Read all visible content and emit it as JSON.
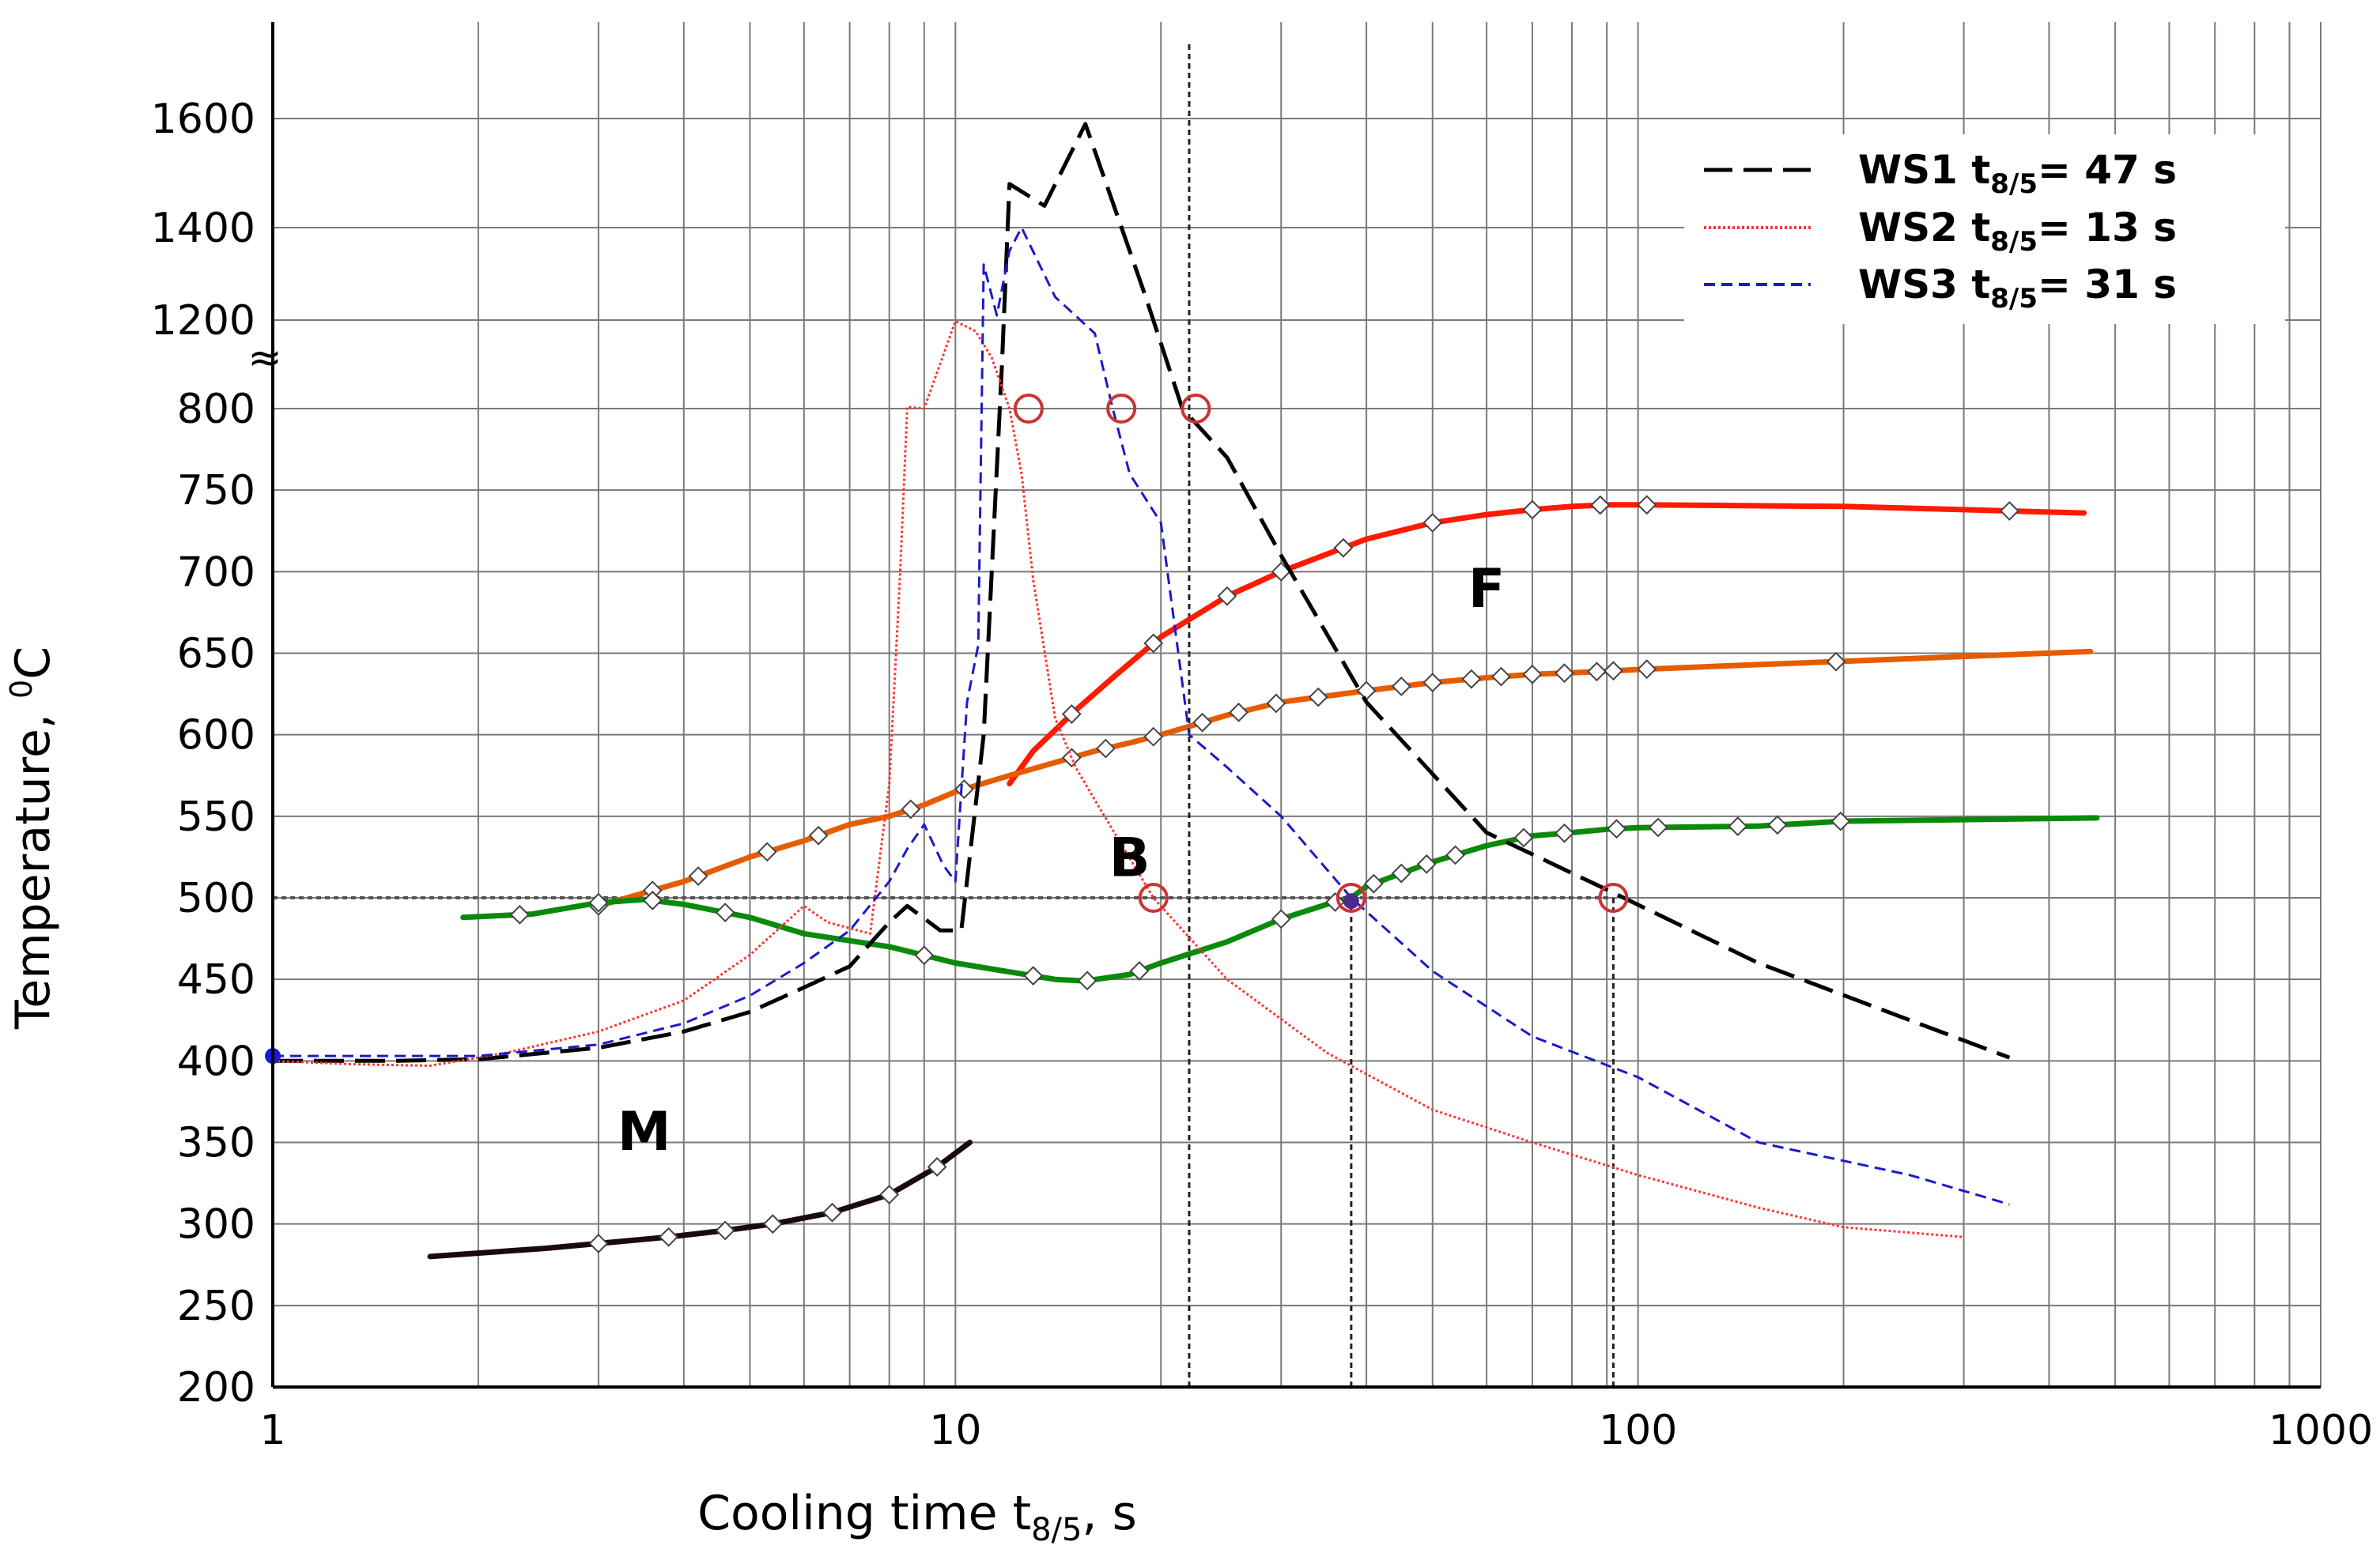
{
  "chart_data": {
    "type": "line",
    "xscale": "log",
    "xlim": [
      1,
      1000
    ],
    "xlabel": "Cooling time t",
    "xlabel_sub": "8/5",
    "xlabel_suffix": ", s",
    "ylabel": "Temperature, ",
    "ylabel_sup": "0",
    "ylabel_unit": "C",
    "x_ticks": [
      {
        "value": 1,
        "label": "1"
      },
      {
        "value": 10,
        "label": "10"
      },
      {
        "value": 100,
        "label": "100"
      },
      {
        "value": 1000,
        "label": "1000"
      }
    ],
    "y_ticks": [
      {
        "value": 200,
        "label": "200"
      },
      {
        "value": 250,
        "label": "250"
      },
      {
        "value": 300,
        "label": "300"
      },
      {
        "value": 350,
        "label": "350"
      },
      {
        "value": 400,
        "label": "400"
      },
      {
        "value": 450,
        "label": "450"
      },
      {
        "value": 500,
        "label": "500"
      },
      {
        "value": 550,
        "label": "550"
      },
      {
        "value": 600,
        "label": "600"
      },
      {
        "value": 650,
        "label": "650"
      },
      {
        "value": 700,
        "label": "700"
      },
      {
        "value": 750,
        "label": "750"
      },
      {
        "value": 800,
        "label": "800"
      },
      {
        "value": 1200,
        "label": "1200"
      },
      {
        "value": 1400,
        "label": "1400"
      },
      {
        "value": 1600,
        "label": "1600"
      }
    ],
    "axis_break_marker": "≈",
    "legend": {
      "position": "top-right",
      "entries": [
        {
          "series": "WS1",
          "prefix": "WS1 t",
          "sub": "8/5",
          "suffix": "= 47 s",
          "color": "#000000",
          "dash": "long-dash"
        },
        {
          "series": "WS2",
          "prefix": "WS2 t",
          "sub": "8/5",
          "suffix": "= 13 s",
          "color": "#ff3333",
          "dash": "dotted"
        },
        {
          "series": "WS3",
          "prefix": "WS3 t",
          "sub": "8/5",
          "suffix": "= 31 s",
          "color": "#1a1acc",
          "dash": "short-dash"
        }
      ]
    },
    "region_labels": [
      {
        "text": "F",
        "x": 60,
        "y": 690
      },
      {
        "text": "B",
        "x": 18,
        "y": 525
      },
      {
        "text": "M",
        "x": 3.5,
        "y": 357
      }
    ],
    "reference_lines": [
      {
        "orientation": "h",
        "value": 500,
        "from": 1,
        "to": 91
      },
      {
        "orientation": "v",
        "value": 22,
        "from": 200,
        "to": 1680
      },
      {
        "orientation": "v",
        "value": 38,
        "from": 200,
        "to": 500
      },
      {
        "orientation": "v",
        "value": 92,
        "from": 200,
        "to": 500
      }
    ],
    "weld_series": [
      {
        "name": "WS1",
        "color": "#000000",
        "dash": "long-dash",
        "x": [
          1,
          1.5,
          2,
          3,
          4,
          5,
          6,
          7,
          8,
          8.5,
          9.5,
          10.2,
          11,
          11.7,
          12,
          13.5,
          15.5,
          19,
          21.5,
          25,
          30,
          40,
          60,
          90,
          150,
          250,
          350
        ],
        "y": [
          400,
          400,
          401,
          408,
          418,
          430,
          445,
          458,
          485,
          495,
          480,
          480,
          600,
          1000,
          1480,
          1440,
          1590,
          1250,
          800,
          770,
          710,
          620,
          540,
          505,
          460,
          425,
          402
        ]
      },
      {
        "name": "WS2",
        "color": "#ff3333",
        "dash": "dotted",
        "x": [
          1,
          1.3,
          1.7,
          2.2,
          3,
          4,
          5,
          6,
          6.5,
          7.5,
          8,
          8.3,
          8.5,
          9,
          10,
          10.7,
          11.3,
          12,
          12.5,
          13,
          14,
          15,
          16,
          19.5,
          25,
          35,
          50,
          70,
          100,
          150,
          200,
          300
        ],
        "y": [
          400,
          398,
          397,
          405,
          418,
          437,
          465,
          495,
          485,
          478,
          570,
          700,
          808,
          800,
          1195,
          1150,
          1030,
          800,
          760,
          695,
          610,
          580,
          560,
          500,
          450,
          405,
          370,
          350,
          330,
          310,
          298,
          292
        ]
      },
      {
        "name": "WS3",
        "color": "#1a1acc",
        "dash": "short-dash",
        "x": [
          1,
          2,
          3,
          4,
          5,
          6,
          7,
          8,
          8.5,
          9,
          9.6,
          10,
          10.4,
          10.8,
          11,
          11.5,
          12,
          12.5,
          14,
          16,
          17,
          18,
          20,
          22,
          25,
          30,
          38,
          50,
          70,
          100,
          150,
          250,
          350
        ],
        "y": [
          403,
          403,
          410,
          423,
          440,
          460,
          480,
          510,
          530,
          545,
          520,
          510,
          620,
          655,
          1320,
          1210,
          1350,
          1400,
          1250,
          1140,
          800,
          760,
          730,
          600,
          580,
          550,
          500,
          455,
          415,
          390,
          350,
          330,
          312
        ]
      }
    ],
    "ws_markers": [
      {
        "x": 12.8,
        "y": 800
      },
      {
        "x": 17.5,
        "y": 800
      },
      {
        "x": 22.5,
        "y": 800
      },
      {
        "x": 19.5,
        "y": 500
      },
      {
        "x": 38,
        "y": 500
      },
      {
        "x": 92,
        "y": 500
      }
    ],
    "ws_markers_color": "#cc3333",
    "start_points": [
      {
        "x": 1,
        "y": 403,
        "color": "#1a1acc"
      },
      {
        "x": 38,
        "y": 498,
        "color": "#4a2a8a"
      }
    ],
    "transformation_curves": [
      {
        "name": "F start (red)",
        "color": "#ff1a00",
        "x": [
          12,
          13,
          15,
          17,
          20,
          25,
          30,
          40,
          50,
          60,
          70,
          80,
          90,
          100,
          200,
          300,
          450
        ],
        "y": [
          570,
          590,
          615,
          635,
          660,
          685,
          700,
          720,
          730,
          735,
          738,
          740,
          741,
          741,
          740,
          738,
          736
        ],
        "markers": [
          14.8,
          19.5,
          25,
          30,
          37,
          50,
          70,
          88,
          103,
          350
        ]
      },
      {
        "name": "F/B start (orange)",
        "color": "#e65c00",
        "x": [
          3,
          4,
          5,
          6,
          7,
          8,
          9,
          10,
          12,
          14,
          16,
          18,
          20,
          25,
          30,
          40,
          50,
          60,
          70,
          80,
          90,
          100,
          150,
          200,
          300,
          460
        ],
        "y": [
          495,
          510,
          525,
          535,
          545,
          550,
          557,
          565,
          575,
          583,
          590,
          595,
          600,
          612,
          620,
          627,
          632,
          635,
          637,
          638,
          639,
          640,
          643,
          645,
          648,
          651
        ],
        "markers": [
          3,
          3.6,
          4.2,
          5.3,
          6.3,
          8.6,
          10.3,
          14.8,
          16.6,
          19.5,
          23,
          26,
          29.5,
          34,
          40,
          45,
          50,
          57,
          63,
          70,
          78,
          87,
          92,
          103,
          195
        ]
      },
      {
        "name": "B start (green)",
        "color": "#0a8a0a",
        "x": [
          1.9,
          2.4,
          3,
          3.5,
          4,
          5,
          6,
          8,
          10,
          14,
          15.5,
          18,
          20,
          25,
          30,
          35,
          38,
          40,
          45,
          50,
          60,
          70,
          80,
          90,
          100,
          150,
          200,
          470
        ],
        "y": [
          488,
          490,
          497,
          499,
          496,
          488,
          478,
          470,
          460,
          450,
          449,
          453,
          460,
          473,
          487,
          496,
          500,
          507,
          515,
          522,
          532,
          538,
          540,
          542,
          543,
          544,
          547,
          549
        ],
        "markers": [
          2.3,
          3,
          3.6,
          4.6,
          9,
          13,
          15.6,
          18.6,
          30,
          36,
          41,
          45,
          49,
          54,
          68,
          78,
          93,
          107,
          140,
          160,
          198
        ]
      },
      {
        "name": "M start (dark)",
        "color": "#1a0a0a",
        "x": [
          1.7,
          2.5,
          3,
          3.8,
          4.6,
          5.4,
          6.6,
          8,
          9.4,
          10.5
        ],
        "y": [
          280,
          285,
          288,
          292,
          296,
          300,
          307,
          318,
          335,
          350
        ],
        "markers": [
          3,
          3.8,
          4.6,
          5.4,
          6.6,
          8,
          9.4
        ]
      }
    ]
  }
}
